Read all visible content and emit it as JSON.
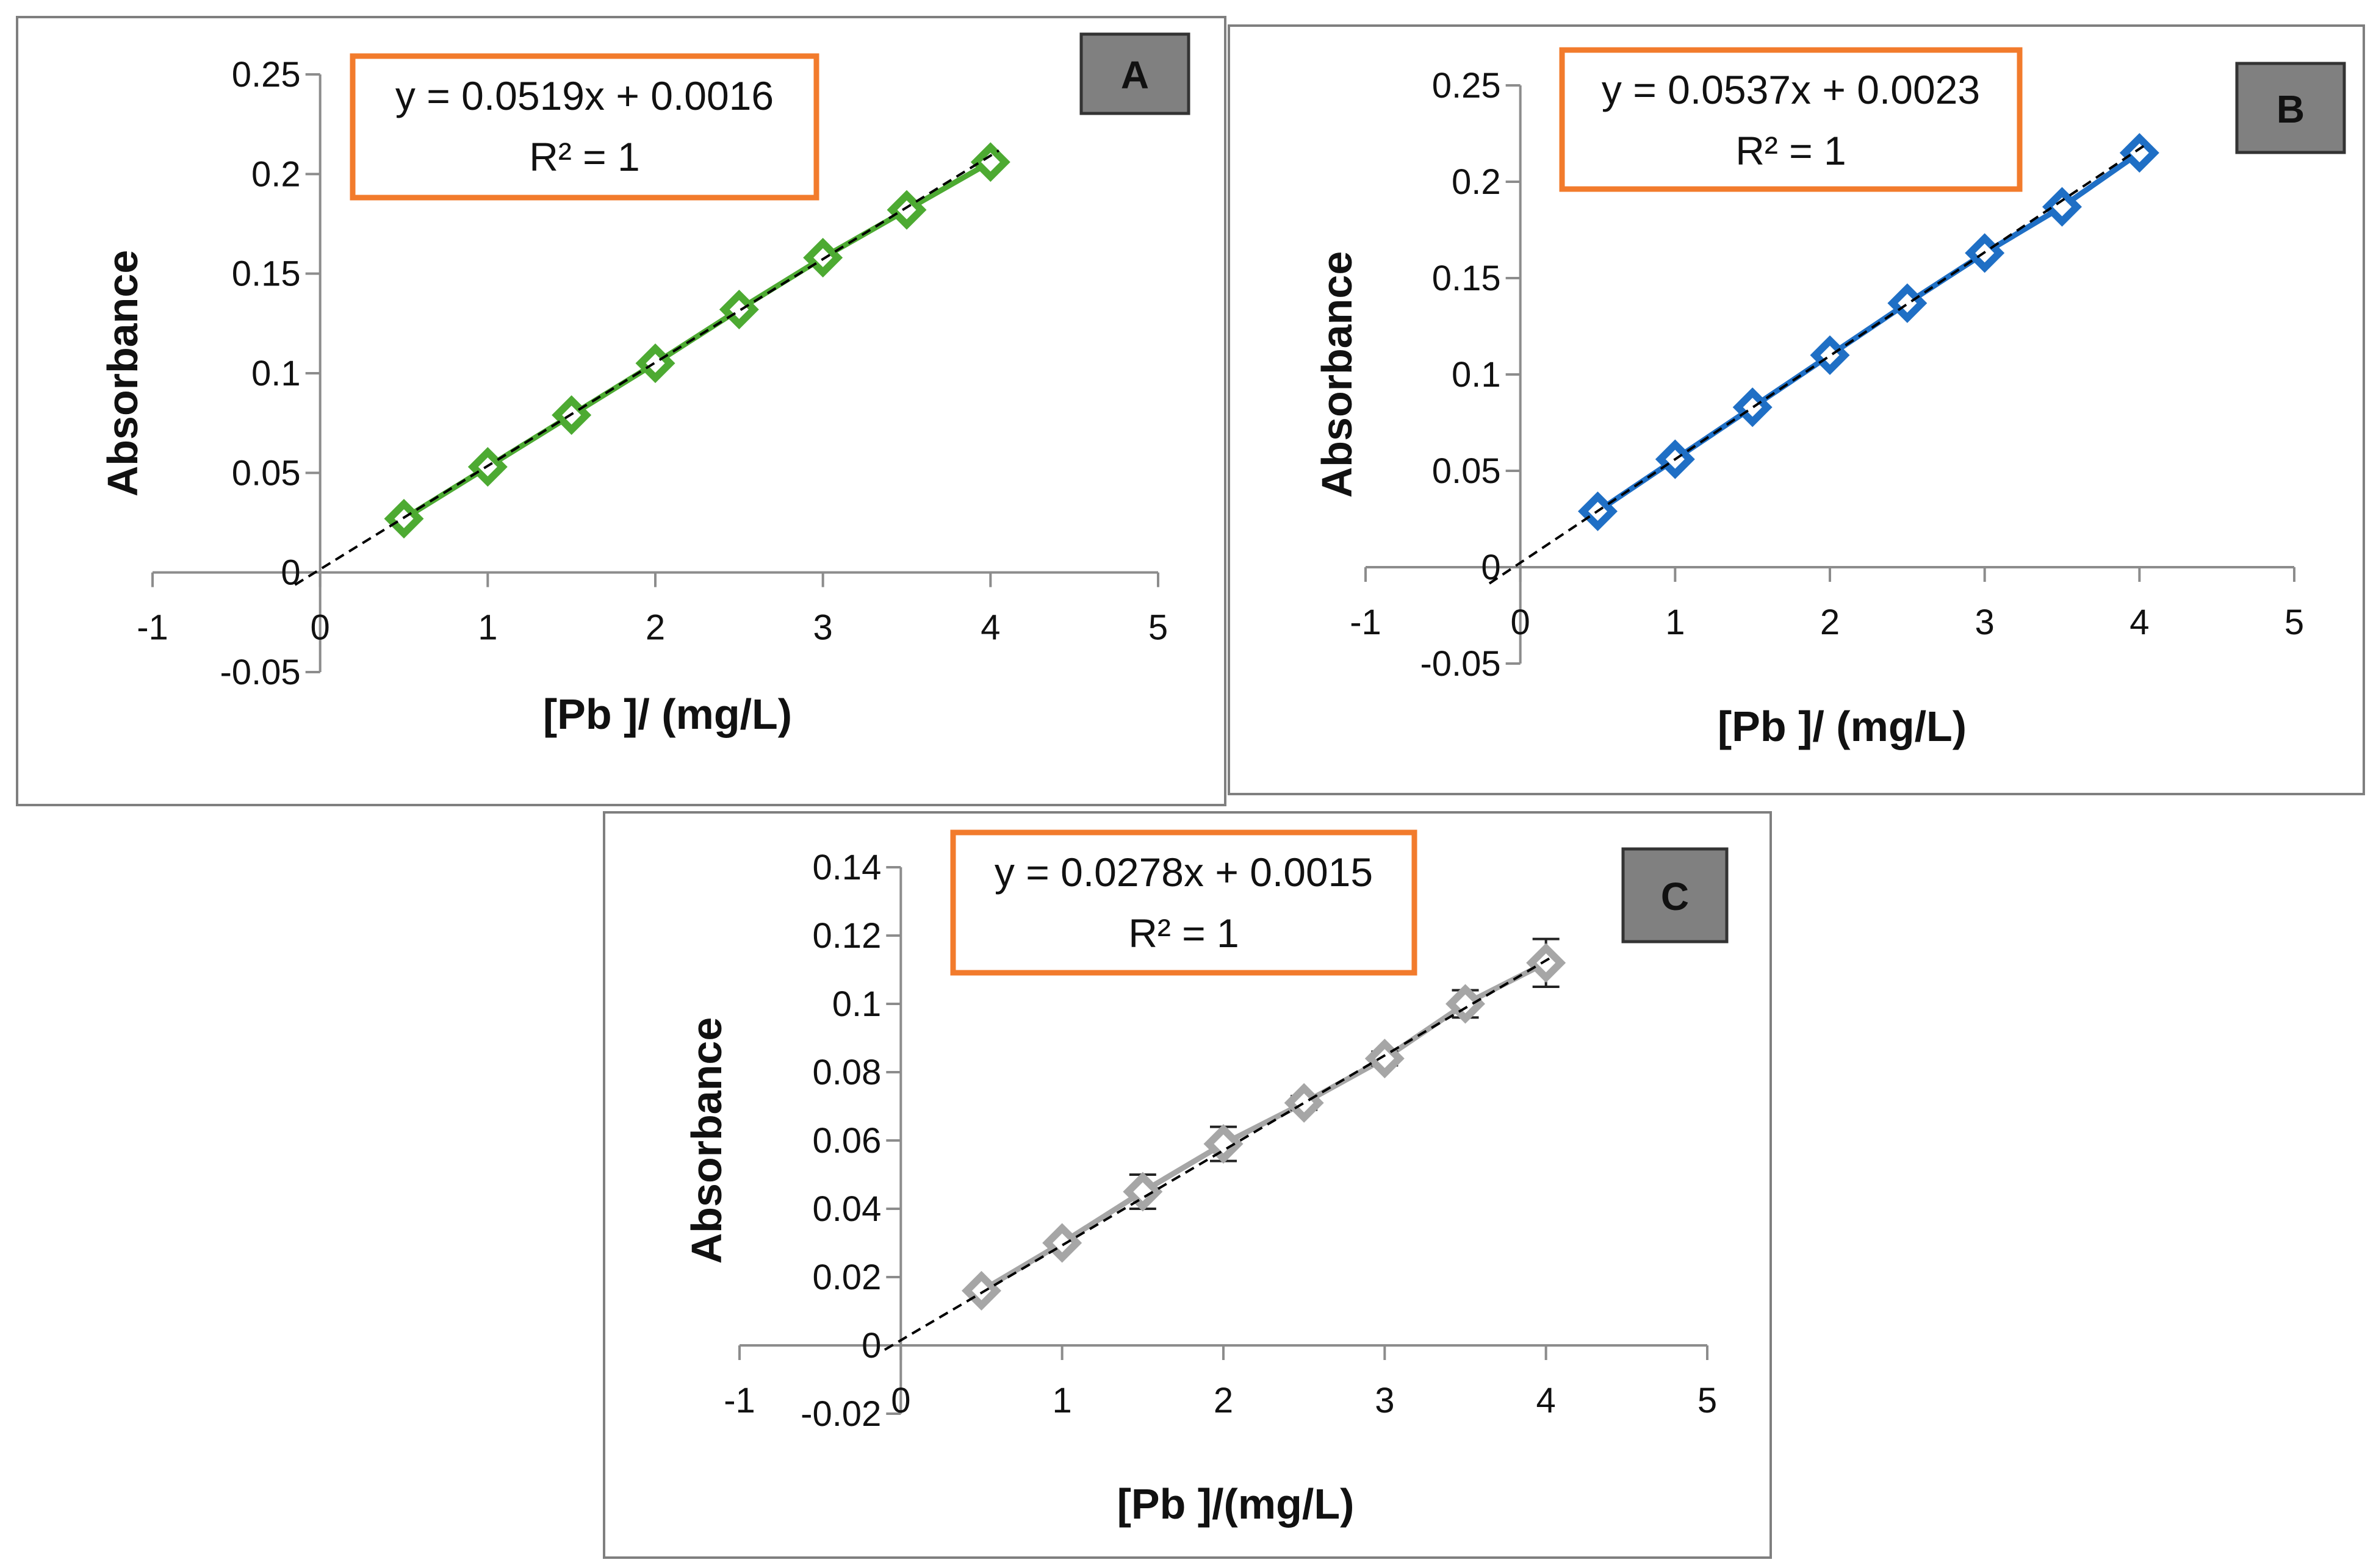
{
  "colors": {
    "panel_border": "#7f7f7f",
    "axis": "#8c8c8c",
    "equation_border": "#f27b2c",
    "badge_fill": "#808080",
    "badge_border": "#333333",
    "trendline": "#000000"
  },
  "chart_data": [
    {
      "id": "A",
      "type": "scatter",
      "label": "A",
      "equation": "y = 0.0519x + 0.0016",
      "r_squared": "R² = 1",
      "xlabel": "[Pb ]/ (mg/L)",
      "ylabel": "Absorbance",
      "xlim": [
        -1,
        5
      ],
      "ylim": [
        -0.05,
        0.25
      ],
      "x_ticks": [
        -1,
        0,
        1,
        2,
        3,
        4,
        5
      ],
      "y_ticks": [
        -0.05,
        0,
        0.05,
        0.1,
        0.15,
        0.2,
        0.25
      ],
      "x_tick_labels": [
        "-1",
        "0",
        "1",
        "2",
        "3",
        "4",
        "5"
      ],
      "y_tick_labels": [
        "-0.05",
        "0",
        "0.05",
        "0.1",
        "0.15",
        "0.2",
        "0.25"
      ],
      "series_color": "#4daa32",
      "marker": "diamond-open",
      "x": [
        0.5,
        1.0,
        1.5,
        2.0,
        2.5,
        3.0,
        3.5,
        4.0
      ],
      "y": [
        0.027,
        0.053,
        0.079,
        0.105,
        0.132,
        0.158,
        0.182,
        0.206
      ],
      "error": [
        0,
        0,
        0,
        0,
        0,
        0,
        0,
        0
      ],
      "trendline": {
        "slope": 0.0519,
        "intercept": 0.0016,
        "x_from": -0.15,
        "x_to": 4.05
      }
    },
    {
      "id": "B",
      "type": "scatter",
      "label": "B",
      "equation": "y = 0.0537x + 0.0023",
      "r_squared": "R² = 1",
      "xlabel": "[Pb ]/ (mg/L)",
      "ylabel": "Absorbance",
      "xlim": [
        -1,
        5
      ],
      "ylim": [
        -0.05,
        0.25
      ],
      "x_ticks": [
        -1,
        0,
        1,
        2,
        3,
        4,
        5
      ],
      "y_ticks": [
        -0.05,
        0,
        0.05,
        0.1,
        0.15,
        0.2,
        0.25
      ],
      "x_tick_labels": [
        "-1",
        "0",
        "1",
        "2",
        "3",
        "4",
        "5"
      ],
      "y_tick_labels": [
        "-0.05",
        "0",
        "0.05",
        "0.1",
        "0.15",
        "0.2",
        "0.25"
      ],
      "series_color": "#1f6fc5",
      "marker": "diamond-open",
      "x": [
        0.5,
        1.0,
        1.5,
        2.0,
        2.5,
        3.0,
        3.5,
        4.0
      ],
      "y": [
        0.029,
        0.056,
        0.083,
        0.11,
        0.137,
        0.163,
        0.187,
        0.215
      ],
      "error": [
        0,
        0,
        0,
        0,
        0,
        0,
        0,
        0
      ],
      "trendline": {
        "slope": 0.0537,
        "intercept": 0.0023,
        "x_from": -0.2,
        "x_to": 4.05
      }
    },
    {
      "id": "C",
      "type": "scatter",
      "label": "C",
      "equation": "y = 0.0278x + 0.0015",
      "r_squared": "R² = 1",
      "xlabel": "[Pb ]/(mg/L)",
      "ylabel": "Absorbance",
      "xlim": [
        -1,
        5
      ],
      "ylim": [
        -0.02,
        0.14
      ],
      "x_ticks": [
        -1,
        0,
        1,
        2,
        3,
        4,
        5
      ],
      "y_ticks": [
        -0.02,
        0,
        0.02,
        0.04,
        0.06,
        0.08,
        0.1,
        0.12,
        0.14
      ],
      "x_tick_labels": [
        "-1",
        "0",
        "1",
        "2",
        "3",
        "4",
        "5"
      ],
      "y_tick_labels": [
        "-0.02",
        "0",
        "0.02",
        "0.04",
        "0.06",
        "0.08",
        "0.1",
        "0.12",
        "0.14"
      ],
      "series_color": "#a6a6a6",
      "marker": "diamond-open",
      "x": [
        0.5,
        1.0,
        1.5,
        2.0,
        2.5,
        3.0,
        3.5,
        4.0
      ],
      "y": [
        0.016,
        0.03,
        0.045,
        0.059,
        0.071,
        0.084,
        0.1,
        0.112
      ],
      "error": [
        0.001,
        0.001,
        0.005,
        0.005,
        0.002,
        0.002,
        0.004,
        0.007
      ],
      "trendline": {
        "slope": 0.0278,
        "intercept": 0.0015,
        "x_from": -0.1,
        "x_to": 4.05
      }
    }
  ]
}
